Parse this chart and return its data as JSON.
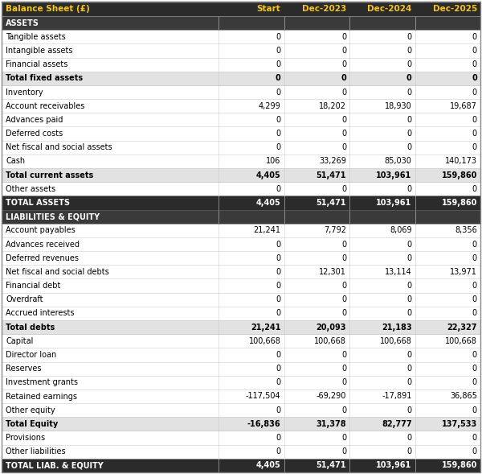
{
  "title": "Balance Sheet (£)",
  "col_headers": [
    "Start",
    "Dec-2023",
    "Dec-2024",
    "Dec-2025"
  ],
  "header_bg": "#2b2b2b",
  "header_text_color": "#f5c518",
  "section_bg": "#3a3a3a",
  "section_text_color": "#ffffff",
  "subtotal_bg": "#e2e2e2",
  "subtotal_text_color": "#000000",
  "total_bg": "#2b2b2b",
  "total_text_color": "#ffffff",
  "normal_bg": "#ffffff",
  "normal_text_color": "#000000",
  "border_color": "#888888",
  "row_border_color": "#cccccc",
  "rows": [
    {
      "label": "ASSETS",
      "values": [
        "",
        "",
        "",
        ""
      ],
      "type": "section"
    },
    {
      "label": "Tangible assets",
      "values": [
        "0",
        "0",
        "0",
        "0"
      ],
      "type": "normal"
    },
    {
      "label": "Intangible assets",
      "values": [
        "0",
        "0",
        "0",
        "0"
      ],
      "type": "normal"
    },
    {
      "label": "Financial assets",
      "values": [
        "0",
        "0",
        "0",
        "0"
      ],
      "type": "normal"
    },
    {
      "label": "Total fixed assets",
      "values": [
        "0",
        "0",
        "0",
        "0"
      ],
      "type": "subtotal"
    },
    {
      "label": "Inventory",
      "values": [
        "0",
        "0",
        "0",
        "0"
      ],
      "type": "normal"
    },
    {
      "label": "Account receivables",
      "values": [
        "4,299",
        "18,202",
        "18,930",
        "19,687"
      ],
      "type": "normal"
    },
    {
      "label": "Advances paid",
      "values": [
        "0",
        "0",
        "0",
        "0"
      ],
      "type": "normal"
    },
    {
      "label": "Deferred costs",
      "values": [
        "0",
        "0",
        "0",
        "0"
      ],
      "type": "normal"
    },
    {
      "label": "Net fiscal and social assets",
      "values": [
        "0",
        "0",
        "0",
        "0"
      ],
      "type": "normal"
    },
    {
      "label": "Cash",
      "values": [
        "106",
        "33,269",
        "85,030",
        "140,173"
      ],
      "type": "normal"
    },
    {
      "label": "Total current assets",
      "values": [
        "4,405",
        "51,471",
        "103,961",
        "159,860"
      ],
      "type": "subtotal"
    },
    {
      "label": "Other assets",
      "values": [
        "0",
        "0",
        "0",
        "0"
      ],
      "type": "normal"
    },
    {
      "label": "TOTAL ASSETS",
      "values": [
        "4,405",
        "51,471",
        "103,961",
        "159,860"
      ],
      "type": "total"
    },
    {
      "label": "LIABILITIES & EQUITY",
      "values": [
        "",
        "",
        "",
        ""
      ],
      "type": "section"
    },
    {
      "label": "Account payables",
      "values": [
        "21,241",
        "7,792",
        "8,069",
        "8,356"
      ],
      "type": "normal"
    },
    {
      "label": "Advances received",
      "values": [
        "0",
        "0",
        "0",
        "0"
      ],
      "type": "normal"
    },
    {
      "label": "Deferred revenues",
      "values": [
        "0",
        "0",
        "0",
        "0"
      ],
      "type": "normal"
    },
    {
      "label": "Net fiscal and social debts",
      "values": [
        "0",
        "12,301",
        "13,114",
        "13,971"
      ],
      "type": "normal"
    },
    {
      "label": "Financial debt",
      "values": [
        "0",
        "0",
        "0",
        "0"
      ],
      "type": "normal"
    },
    {
      "label": "Overdraft",
      "values": [
        "0",
        "0",
        "0",
        "0"
      ],
      "type": "normal"
    },
    {
      "label": "Accrued interests",
      "values": [
        "0",
        "0",
        "0",
        "0"
      ],
      "type": "normal"
    },
    {
      "label": "Total debts",
      "values": [
        "21,241",
        "20,093",
        "21,183",
        "22,327"
      ],
      "type": "subtotal"
    },
    {
      "label": "Capital",
      "values": [
        "100,668",
        "100,668",
        "100,668",
        "100,668"
      ],
      "type": "normal"
    },
    {
      "label": "Director loan",
      "values": [
        "0",
        "0",
        "0",
        "0"
      ],
      "type": "normal"
    },
    {
      "label": "Reserves",
      "values": [
        "0",
        "0",
        "0",
        "0"
      ],
      "type": "normal"
    },
    {
      "label": "Investment grants",
      "values": [
        "0",
        "0",
        "0",
        "0"
      ],
      "type": "normal"
    },
    {
      "label": "Retained earnings",
      "values": [
        "-117,504",
        "-69,290",
        "-17,891",
        "36,865"
      ],
      "type": "normal"
    },
    {
      "label": "Other equity",
      "values": [
        "0",
        "0",
        "0",
        "0"
      ],
      "type": "normal"
    },
    {
      "label": "Total Equity",
      "values": [
        "-16,836",
        "31,378",
        "82,777",
        "137,533"
      ],
      "type": "subtotal"
    },
    {
      "label": "Provisions",
      "values": [
        "0",
        "0",
        "0",
        "0"
      ],
      "type": "normal"
    },
    {
      "label": "Other liabilities",
      "values": [
        "0",
        "0",
        "0",
        "0"
      ],
      "type": "normal"
    },
    {
      "label": "TOTAL LIAB. & EQUITY",
      "values": [
        "4,405",
        "51,471",
        "103,961",
        "159,860"
      ],
      "type": "total"
    }
  ]
}
